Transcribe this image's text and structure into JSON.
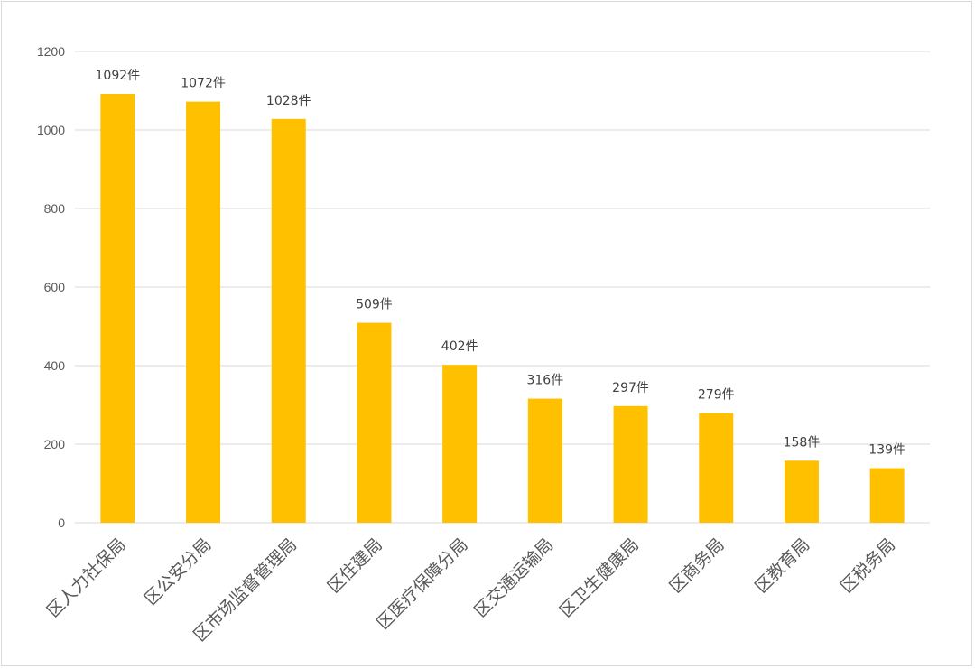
{
  "chart_data": {
    "type": "bar",
    "categories": [
      "区人力社保局",
      "区公安分局",
      "区市场监督管理局",
      "区住建局",
      "区医疗保障分局",
      "区交通运输局",
      "区卫生健康局",
      "区商务局",
      "区教育局",
      "区税务局"
    ],
    "values": [
      1092,
      1072,
      1028,
      509,
      402,
      316,
      297,
      279,
      158,
      139
    ],
    "data_labels": [
      "1092件",
      "1072件",
      "1028件",
      "509件",
      "402件",
      "316件",
      "297件",
      "279件",
      "158件",
      "139件"
    ],
    "y_ticks": [
      "0",
      "200",
      "400",
      "600",
      "800",
      "1000",
      "1200"
    ],
    "ylim": [
      0,
      1200
    ],
    "title": "",
    "xlabel": "",
    "ylabel": "",
    "grid": true,
    "legend": "none",
    "bar_color": "#FFC000",
    "grid_color": "#d9d9d9"
  }
}
